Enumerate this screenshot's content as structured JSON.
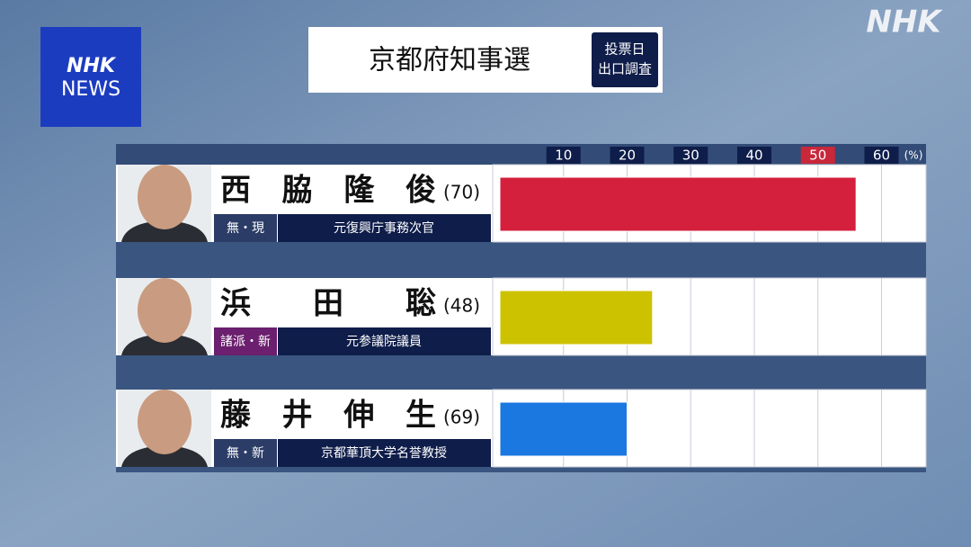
{
  "logo": {
    "line1": "NHK",
    "line2": "NEWS"
  },
  "watermark": "NHK",
  "header": {
    "title": "京都府知事選",
    "badge": [
      "投票日",
      "出口調査"
    ]
  },
  "chart_data": {
    "type": "bar",
    "orientation": "horizontal",
    "categories": [
      "西脇隆俊",
      "浜田聡",
      "藤井伸生"
    ],
    "ages": [
      "(70)",
      "(48)",
      "(69)"
    ],
    "parties": [
      "無・現",
      "諸派・新",
      "無・新"
    ],
    "party_colors": [
      "#2b3c66",
      "#6b1f6e",
      "#2b3c66"
    ],
    "careers": [
      "元復興庁事務次官",
      "元参議院議員",
      "京都華頂大学名誉教授"
    ],
    "values": [
      56,
      24,
      20
    ],
    "colors": [
      "#d41f3d",
      "#cdc200",
      "#1a78e0"
    ],
    "xlim": [
      0,
      67
    ],
    "xticks": [
      10,
      20,
      30,
      40,
      50,
      60
    ],
    "tick_colors": [
      "#0f1d4a",
      "#0f1d4a",
      "#0f1d4a",
      "#0f1d4a",
      "#c8283a",
      "#0f1d4a"
    ],
    "unit": "(%)",
    "grid": true
  }
}
